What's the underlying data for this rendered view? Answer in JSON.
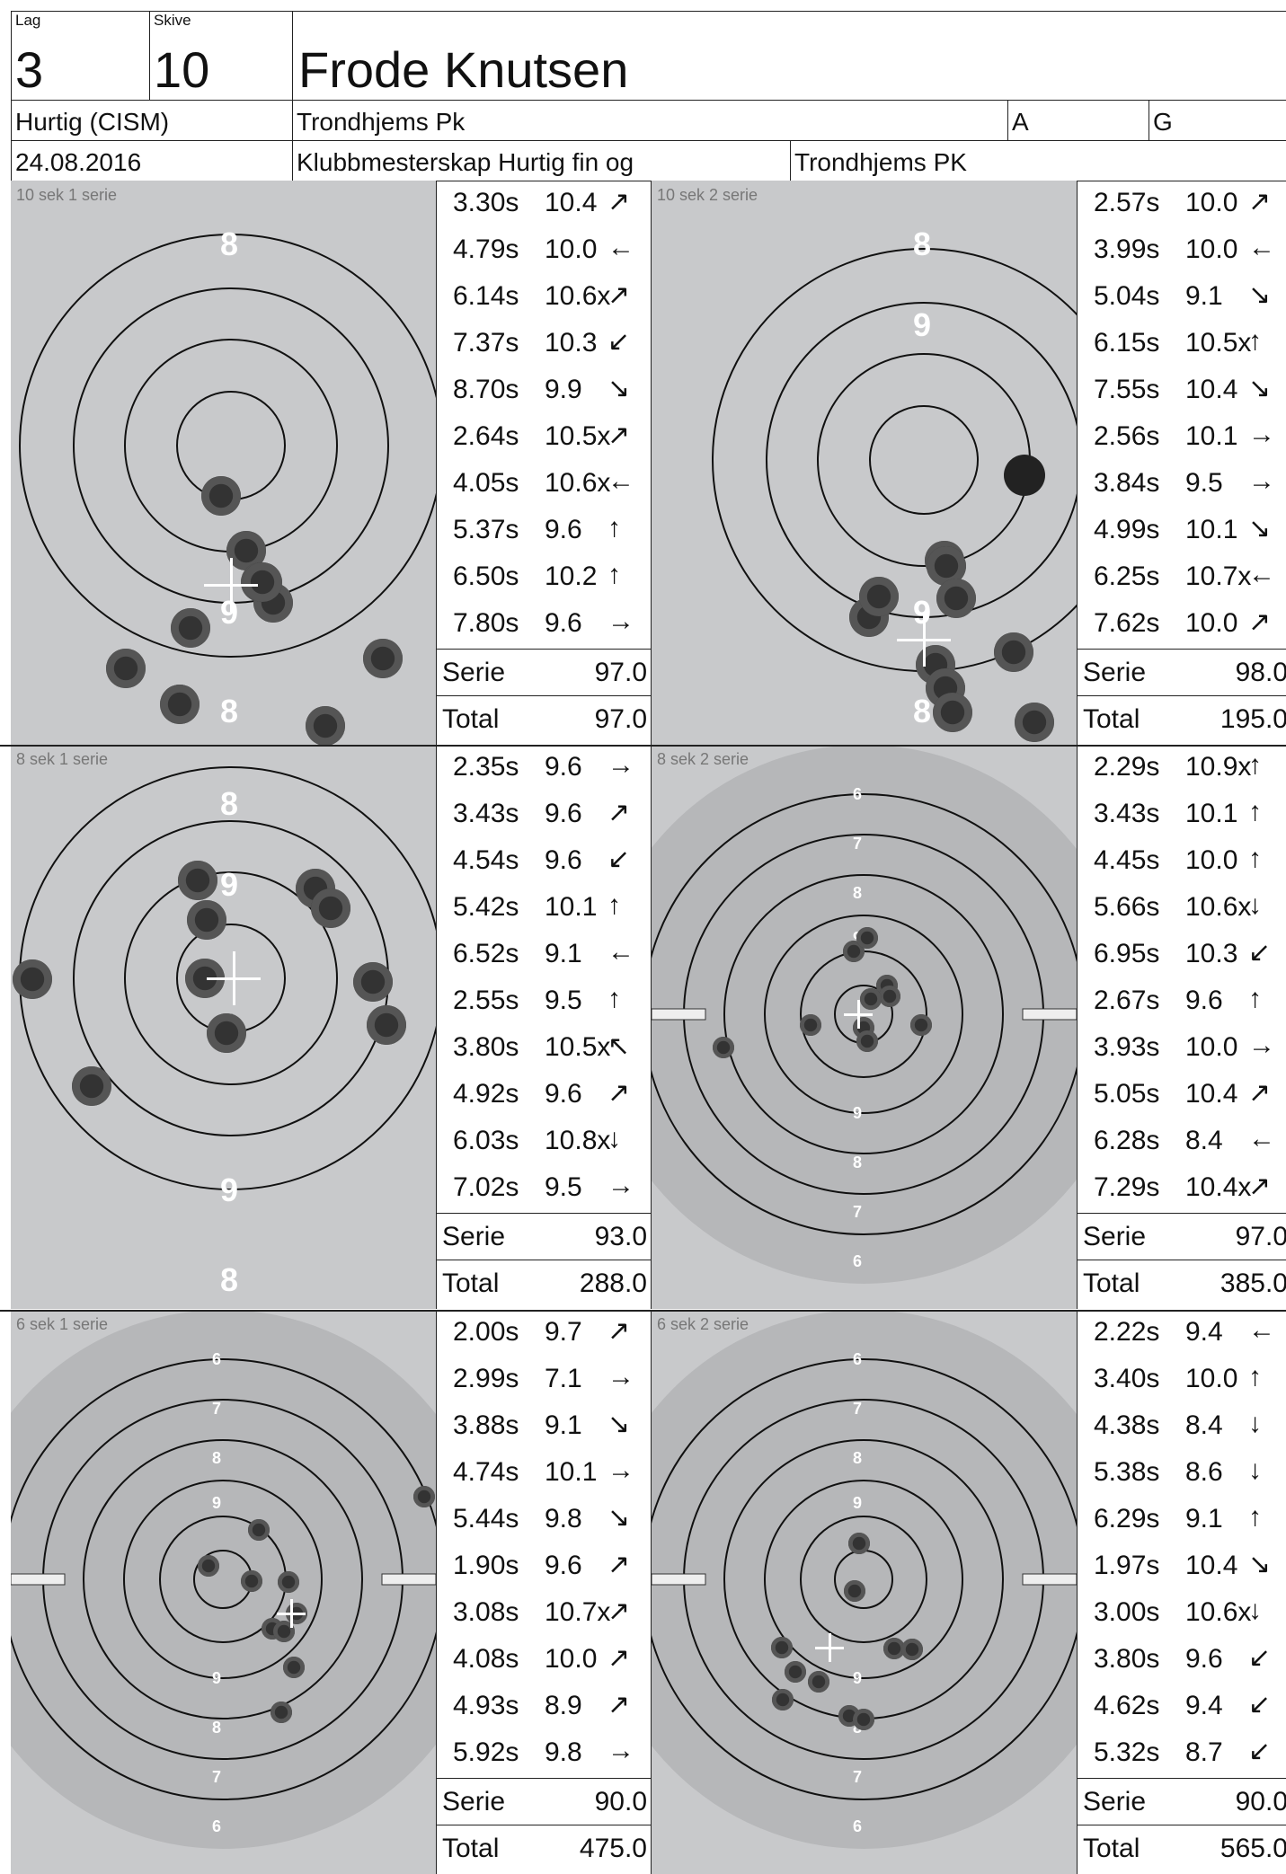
{
  "header": {
    "lag_label": "Lag",
    "lag_value": "3",
    "skive_label": "Skive",
    "skive_value": "10",
    "shooter_name": "Frode Knutsen",
    "program": "Hurtig (CISM)",
    "club": "Trondhjems Pk",
    "class_a": "A",
    "class_g": "G",
    "date": "24.08.2016",
    "competition": "Klubbmesterskap Hurtig fin og",
    "organizer": "Trondhjems PK"
  },
  "series": [
    {
      "label": "10 sek 1 serie",
      "target_type": "precision",
      "shots": [
        {
          "time": "3.30s",
          "value": "10.4",
          "dir": "↗"
        },
        {
          "time": "4.79s",
          "value": "10.0",
          "dir": "←"
        },
        {
          "time": "6.14s",
          "value": "10.6x",
          "dir": "↗"
        },
        {
          "time": "7.37s",
          "value": "10.3",
          "dir": "↙"
        },
        {
          "time": "8.70s",
          "value": "9.9",
          "dir": "↘"
        },
        {
          "time": "2.64s",
          "value": "10.5x",
          "dir": "↗"
        },
        {
          "time": "4.05s",
          "value": "10.6x",
          "dir": "←"
        },
        {
          "time": "5.37s",
          "value": "9.6",
          "dir": "↑"
        },
        {
          "time": "6.50s",
          "value": "10.2",
          "dir": "↑"
        },
        {
          "time": "7.80s",
          "value": "9.6",
          "dir": "→"
        }
      ],
      "serie_label": "Serie",
      "serie_value": "97.0",
      "total_label": "Total",
      "total_value": "97.0"
    },
    {
      "label": "10 sek 2 serie",
      "target_type": "precision",
      "shots": [
        {
          "time": "2.57s",
          "value": "10.0",
          "dir": "↗"
        },
        {
          "time": "3.99s",
          "value": "10.0",
          "dir": "←"
        },
        {
          "time": "5.04s",
          "value": "9.1",
          "dir": "↘"
        },
        {
          "time": "6.15s",
          "value": "10.5x",
          "dir": "↑"
        },
        {
          "time": "7.55s",
          "value": "10.4",
          "dir": "↘"
        },
        {
          "time": "2.56s",
          "value": "10.1",
          "dir": "→"
        },
        {
          "time": "3.84s",
          "value": "9.5",
          "dir": "→"
        },
        {
          "time": "4.99s",
          "value": "10.1",
          "dir": "↘"
        },
        {
          "time": "6.25s",
          "value": "10.7x",
          "dir": "←"
        },
        {
          "time": "7.62s",
          "value": "10.0",
          "dir": "↗"
        }
      ],
      "serie_label": "Serie",
      "serie_value": "98.0",
      "total_label": "Total",
      "total_value": "195.0"
    },
    {
      "label": "8 sek 1 serie",
      "target_type": "precision",
      "shots": [
        {
          "time": "2.35s",
          "value": "9.6",
          "dir": "→"
        },
        {
          "time": "3.43s",
          "value": "9.6",
          "dir": "↗"
        },
        {
          "time": "4.54s",
          "value": "9.6",
          "dir": "↙"
        },
        {
          "time": "5.42s",
          "value": "10.1",
          "dir": "↑"
        },
        {
          "time": "6.52s",
          "value": "9.1",
          "dir": "←"
        },
        {
          "time": "2.55s",
          "value": "9.5",
          "dir": "↑"
        },
        {
          "time": "3.80s",
          "value": "10.5x",
          "dir": "↖"
        },
        {
          "time": "4.92s",
          "value": "9.6",
          "dir": "↗"
        },
        {
          "time": "6.03s",
          "value": "10.8x",
          "dir": "↓"
        },
        {
          "time": "7.02s",
          "value": "9.5",
          "dir": "→"
        }
      ],
      "serie_label": "Serie",
      "serie_value": "93.0",
      "total_label": "Total",
      "total_value": "288.0"
    },
    {
      "label": "8 sek 2 serie",
      "target_type": "rapid",
      "shots": [
        {
          "time": "2.29s",
          "value": "10.9x",
          "dir": "↑"
        },
        {
          "time": "3.43s",
          "value": "10.1",
          "dir": "↑"
        },
        {
          "time": "4.45s",
          "value": "10.0",
          "dir": "↑"
        },
        {
          "time": "5.66s",
          "value": "10.6x",
          "dir": "↓"
        },
        {
          "time": "6.95s",
          "value": "10.3",
          "dir": "↙"
        },
        {
          "time": "2.67s",
          "value": "9.6",
          "dir": "↑"
        },
        {
          "time": "3.93s",
          "value": "10.0",
          "dir": "→"
        },
        {
          "time": "5.05s",
          "value": "10.4",
          "dir": "↗"
        },
        {
          "time": "6.28s",
          "value": "8.4",
          "dir": "←"
        },
        {
          "time": "7.29s",
          "value": "10.4x",
          "dir": "↗"
        }
      ],
      "serie_label": "Serie",
      "serie_value": "97.0",
      "total_label": "Total",
      "total_value": "385.0"
    },
    {
      "label": "6 sek 1 serie",
      "target_type": "rapid",
      "shots": [
        {
          "time": "2.00s",
          "value": "9.7",
          "dir": "↗"
        },
        {
          "time": "2.99s",
          "value": "7.1",
          "dir": "→"
        },
        {
          "time": "3.88s",
          "value": "9.1",
          "dir": "↘"
        },
        {
          "time": "4.74s",
          "value": "10.1",
          "dir": "→"
        },
        {
          "time": "5.44s",
          "value": "9.8",
          "dir": "↘"
        },
        {
          "time": "1.90s",
          "value": "9.6",
          "dir": "↗"
        },
        {
          "time": "3.08s",
          "value": "10.7x",
          "dir": "↗"
        },
        {
          "time": "4.08s",
          "value": "10.0",
          "dir": "↗"
        },
        {
          "time": "4.93s",
          "value": "8.9",
          "dir": "↗"
        },
        {
          "time": "5.92s",
          "value": "9.8",
          "dir": "→"
        }
      ],
      "serie_label": "Serie",
      "serie_value": "90.0",
      "total_label": "Total",
      "total_value": "475.0"
    },
    {
      "label": "6 sek 2 serie",
      "target_type": "rapid",
      "shots": [
        {
          "time": "2.22s",
          "value": "9.4",
          "dir": "←"
        },
        {
          "time": "3.40s",
          "value": "10.0",
          "dir": "↑"
        },
        {
          "time": "4.38s",
          "value": "8.4",
          "dir": "↓"
        },
        {
          "time": "5.38s",
          "value": "8.6",
          "dir": "↓"
        },
        {
          "time": "6.29s",
          "value": "9.1",
          "dir": "↑"
        },
        {
          "time": "1.97s",
          "value": "10.4",
          "dir": "↘"
        },
        {
          "time": "3.00s",
          "value": "10.6x",
          "dir": "↓"
        },
        {
          "time": "3.80s",
          "value": "9.6",
          "dir": "↙"
        },
        {
          "time": "4.62s",
          "value": "9.4",
          "dir": "↙"
        },
        {
          "time": "5.32s",
          "value": "8.7",
          "dir": "↙"
        }
      ],
      "serie_label": "Serie",
      "serie_value": "90.0",
      "total_label": "Total",
      "total_value": "565.0"
    }
  ],
  "ring_labels": {
    "precision": [
      "8",
      "9",
      "9",
      "8"
    ],
    "rapid": [
      "6",
      "7",
      "8",
      "9",
      "9",
      "8",
      "7",
      "6"
    ]
  }
}
